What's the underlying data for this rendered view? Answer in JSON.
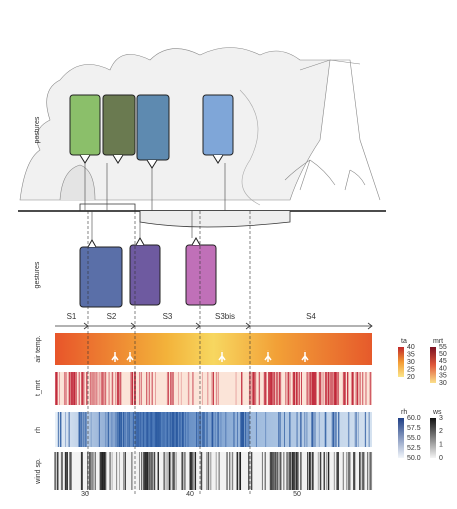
{
  "labels": {
    "postures": "postures",
    "gestures": "gestures"
  },
  "segments": [
    "S1",
    "S2",
    "S3",
    "S3bis",
    "S4"
  ],
  "rows": [
    "air temp.",
    "t_mrt",
    "rh",
    "wind sp."
  ],
  "colorbars": [
    {
      "title": "ta",
      "ticks": [
        "40",
        "35",
        "30",
        "25",
        "20"
      ]
    },
    {
      "title": "mrt",
      "ticks": [
        "55",
        "50",
        "45",
        "40",
        "35",
        "30"
      ]
    },
    {
      "title": "rh",
      "ticks": [
        "60.0",
        "57.5",
        "55.0",
        "52.5",
        "50.0"
      ]
    },
    {
      "title": "ws",
      "ticks": [
        "3",
        "2",
        "1",
        "0"
      ]
    }
  ],
  "x_ticks": [
    "30",
    "40",
    "50"
  ]
}
